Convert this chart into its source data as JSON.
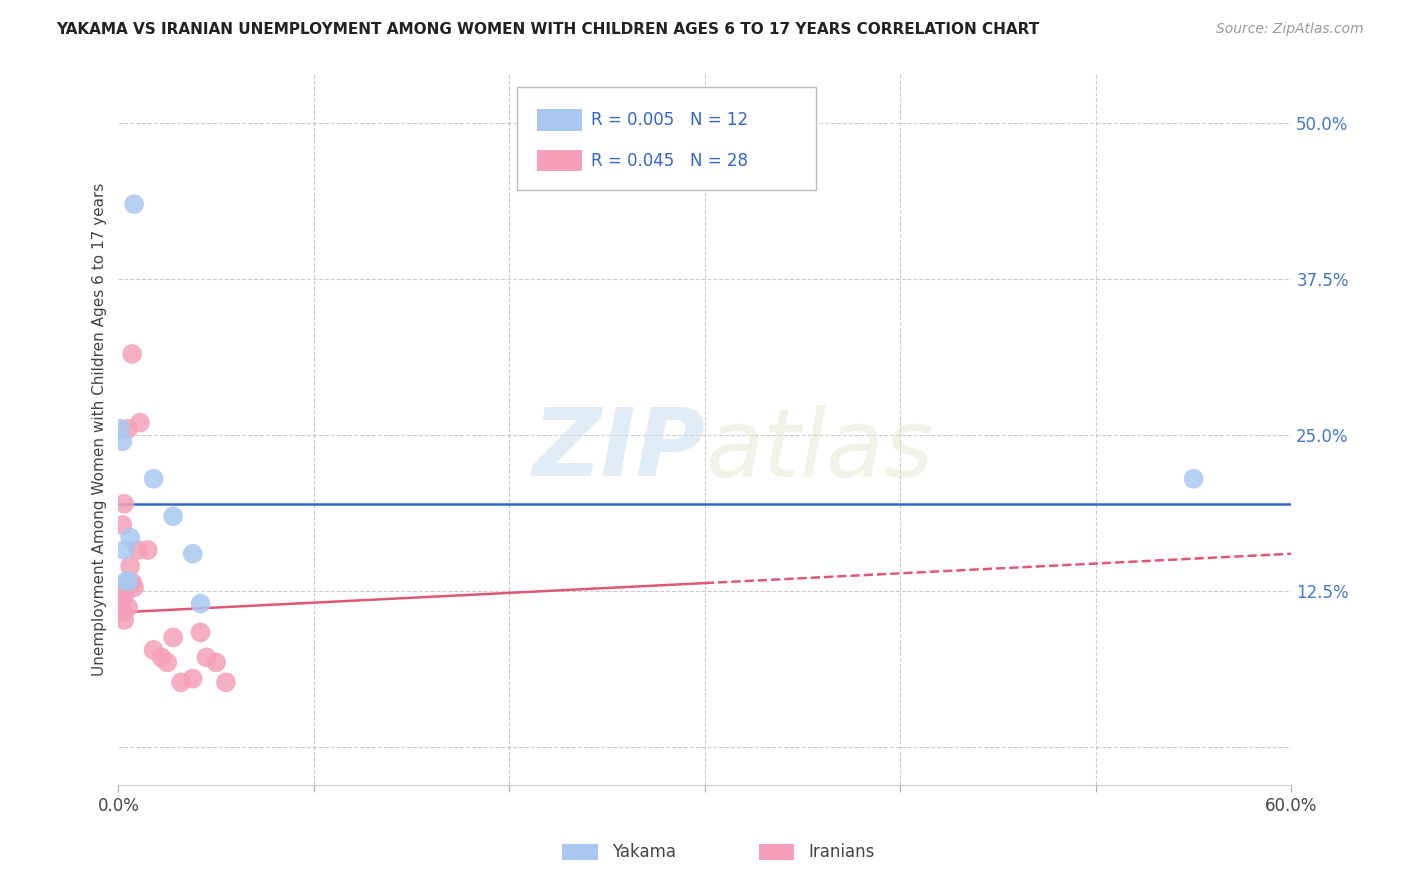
{
  "title": "YAKAMA VS IRANIAN UNEMPLOYMENT AMONG WOMEN WITH CHILDREN AGES 6 TO 17 YEARS CORRELATION CHART",
  "source": "Source: ZipAtlas.com",
  "ylabel": "Unemployment Among Women with Children Ages 6 to 17 years",
  "xlim": [
    0.0,
    0.6
  ],
  "ylim": [
    -0.03,
    0.54
  ],
  "xticks": [
    0.0,
    0.1,
    0.2,
    0.3,
    0.4,
    0.5,
    0.6
  ],
  "xticklabels": [
    "0.0%",
    "",
    "",
    "",
    "",
    "",
    "60.0%"
  ],
  "yticks_right": [
    0.0,
    0.125,
    0.25,
    0.375,
    0.5
  ],
  "ytick_right_labels": [
    "",
    "12.5%",
    "25.0%",
    "37.5%",
    "50.0%"
  ],
  "grid_color": "#cccccc",
  "background_color": "#ffffff",
  "yakama_color": "#a8c8f0",
  "iranian_color": "#f5a0b8",
  "yakama_line_color": "#3366cc",
  "iranian_line_color": "#e05878",
  "watermark_zip": "ZIP",
  "watermark_atlas": "atlas",
  "yakama_x": [
    0.008,
    0.002,
    0.001,
    0.018,
    0.006,
    0.003,
    0.004,
    0.005,
    0.028,
    0.038,
    0.042,
    0.55
  ],
  "yakama_y": [
    0.435,
    0.245,
    0.255,
    0.215,
    0.168,
    0.158,
    0.133,
    0.133,
    0.185,
    0.155,
    0.115,
    0.215
  ],
  "iranian_x": [
    0.007,
    0.011,
    0.005,
    0.003,
    0.002,
    0.001,
    0.002,
    0.001,
    0.002,
    0.003,
    0.004,
    0.003,
    0.005,
    0.006,
    0.007,
    0.008,
    0.01,
    0.015,
    0.018,
    0.022,
    0.025,
    0.028,
    0.032,
    0.038,
    0.042,
    0.045,
    0.05,
    0.055
  ],
  "iranian_y": [
    0.315,
    0.26,
    0.255,
    0.195,
    0.178,
    0.122,
    0.118,
    0.112,
    0.108,
    0.102,
    0.128,
    0.122,
    0.112,
    0.145,
    0.132,
    0.128,
    0.158,
    0.158,
    0.078,
    0.072,
    0.068,
    0.088,
    0.052,
    0.055,
    0.092,
    0.072,
    0.068,
    0.052
  ],
  "yakama_trend_y": 0.195,
  "iranian_trend_x0": 0.0,
  "iranian_trend_y0": 0.108,
  "iranian_trend_solid_end": 0.3,
  "iranian_trend_x1": 0.6,
  "iranian_trend_y1": 0.155
}
